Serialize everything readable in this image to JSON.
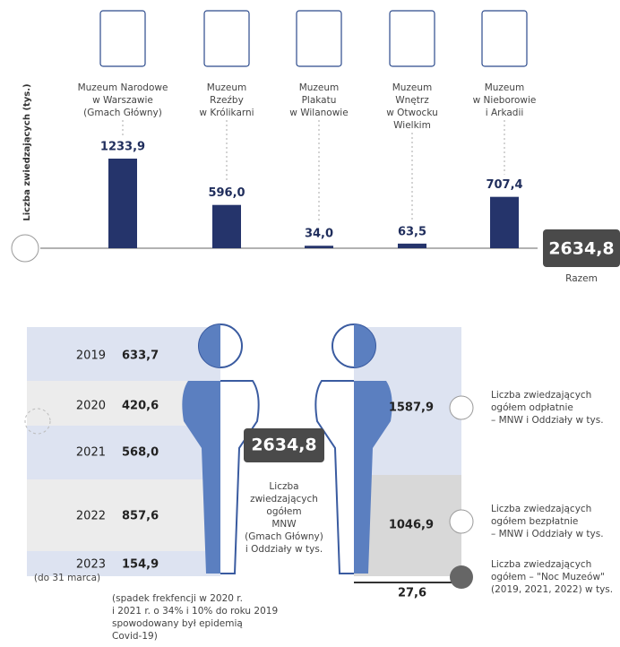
{
  "chart_data": {
    "type": "bar",
    "ylabel": "Liczba zwiedzających (tys.)",
    "categories": [
      [
        "Muzeum Narodowe",
        "w Warszawie",
        "(Gmach Główny)"
      ],
      [
        "Muzeum",
        "Rzeźby",
        "w Królikarni"
      ],
      [
        "Muzeum",
        "Plakatu",
        "w Wilanowie"
      ],
      [
        "Muzeum",
        "Wnętrz",
        "w Otwocku",
        "Wielkim"
      ],
      [
        "Muzeum",
        "w Nieborowie",
        "i Arkadii"
      ]
    ],
    "values": [
      1233.9,
      596.0,
      34.0,
      63.5,
      707.4
    ],
    "value_labels": [
      "1233,9",
      "596,0",
      "34,0",
      "63,5",
      "707,4"
    ],
    "color": "#25346b",
    "total": "2634,8",
    "total_label": "Razem"
  },
  "infographic": {
    "years": [
      {
        "year": "2019",
        "value": "633,7"
      },
      {
        "year": "2020",
        "value": "420,6"
      },
      {
        "year": "2021",
        "value": "568,0"
      },
      {
        "year": "2022",
        "value": "857,6"
      },
      {
        "year": "2023",
        "note": "(do 31 marca)",
        "value": "154,9"
      }
    ],
    "total": "2634,8",
    "total_caption": [
      "Liczba",
      "zwiedzających",
      "ogółem",
      "MNW",
      "(Gmach Główny)",
      "i Oddziały w tys."
    ],
    "breakdown": [
      {
        "value": "1587,9",
        "caption": [
          "Liczba zwiedzających",
          "ogółem odpłatnie",
          "– MNW i Oddziały w tys."
        ]
      },
      {
        "value": "1046,9",
        "caption": [
          "Liczba zwiedzających",
          "ogółem bezpłatnie",
          "– MNW i Oddziały w tys."
        ]
      },
      {
        "value": "27,6",
        "caption": [
          "Liczba zwiedzających",
          "ogółem – \"Noc Muzeów\"",
          "(2019, 2021, 2022) w tys."
        ]
      }
    ],
    "footnote": [
      "(spadek frekfencji w 2020 r.",
      "i 2021 r. o 34% i 10% do roku 2019",
      "spowodowany był epidemią",
      "Covid-19)"
    ]
  }
}
